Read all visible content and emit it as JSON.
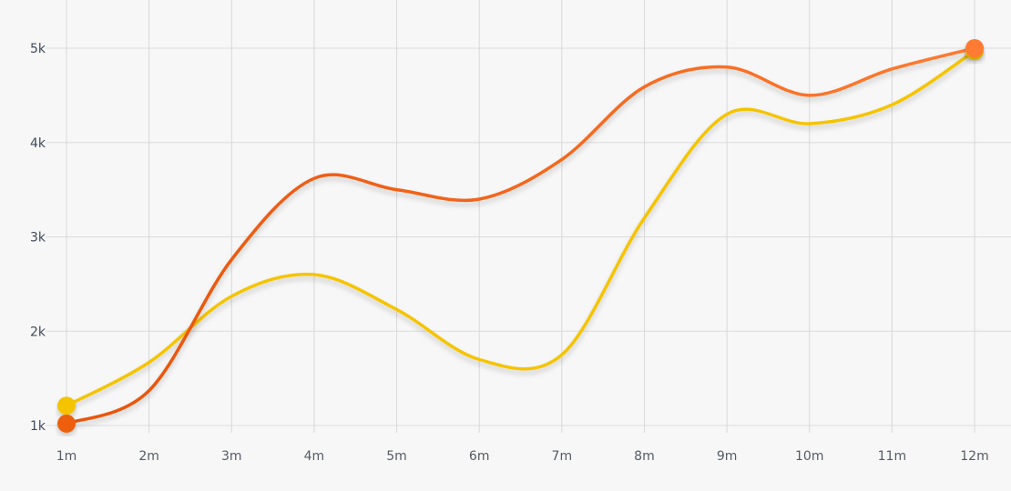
{
  "chart_data": {
    "type": "line",
    "title": "",
    "xlabel": "",
    "ylabel": "",
    "categories": [
      "1m",
      "2m",
      "3m",
      "4m",
      "5m",
      "6m",
      "7m",
      "8m",
      "9m",
      "10m",
      "11m",
      "12m"
    ],
    "y_ticks": [
      "1k",
      "2k",
      "3k",
      "4k",
      "5k"
    ],
    "ylim": [
      1000,
      5000
    ],
    "grid": true,
    "smooth": true,
    "series": [
      {
        "color": "#f5c400",
        "values": [
          1210,
          1670,
          2370,
          2600,
          2230,
          1700,
          1750,
          3200,
          4300,
          4200,
          4400,
          4970
        ]
      },
      {
        "color": "#ee5f0c",
        "color_end": "#ff7a30",
        "values": [
          1020,
          1370,
          2760,
          3620,
          3500,
          3400,
          3820,
          4590,
          4800,
          4500,
          4780,
          5000
        ]
      }
    ]
  }
}
